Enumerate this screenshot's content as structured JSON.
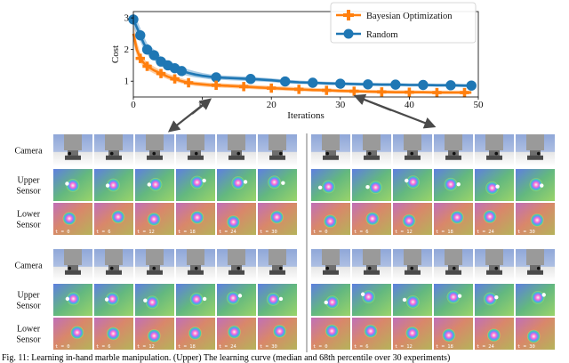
{
  "colors": {
    "bayesian": "#ff7f0e",
    "random": "#1f77b4",
    "bayesian_band": "#ffbf86",
    "random_band": "#8fbbdc"
  },
  "chart_data": {
    "type": "line",
    "xlabel": "Iterations",
    "ylabel": "Cost",
    "xlim": [
      0,
      50
    ],
    "ylim": [
      0.5,
      3.2
    ],
    "xticks": [
      0,
      10,
      20,
      30,
      40,
      50
    ],
    "yticks": [
      1,
      2,
      3
    ],
    "legend_position": "top-right",
    "grid": false,
    "series": [
      {
        "name": "Bayesian Optimization",
        "marker_x": [
          1,
          2,
          4,
          6,
          8,
          12,
          16,
          20,
          24,
          28,
          32,
          36,
          40,
          44,
          48
        ],
        "x": [
          0,
          0.5,
          1,
          1.5,
          2,
          3,
          4,
          5,
          6,
          7,
          8,
          9,
          10,
          11,
          12,
          14,
          16,
          18,
          20,
          22,
          24,
          26,
          28,
          30,
          32,
          34,
          36,
          38,
          40,
          42,
          44,
          46,
          48,
          49
        ],
        "y": [
          2.5,
          2.0,
          1.72,
          1.58,
          1.47,
          1.34,
          1.24,
          1.14,
          1.07,
          1.0,
          0.95,
          0.92,
          0.9,
          0.88,
          0.87,
          0.85,
          0.83,
          0.8,
          0.78,
          0.76,
          0.74,
          0.72,
          0.71,
          0.69,
          0.68,
          0.67,
          0.66,
          0.65,
          0.65,
          0.65,
          0.64,
          0.64,
          0.64,
          0.64
        ],
        "lower": [
          2.2,
          1.8,
          1.58,
          1.46,
          1.36,
          1.24,
          1.15,
          1.06,
          0.99,
          0.93,
          0.88,
          0.85,
          0.83,
          0.81,
          0.8,
          0.78,
          0.76,
          0.74,
          0.72,
          0.7,
          0.69,
          0.67,
          0.66,
          0.64,
          0.63,
          0.62,
          0.61,
          0.6,
          0.6,
          0.6,
          0.59,
          0.59,
          0.59,
          0.59
        ],
        "upper": [
          2.8,
          2.25,
          1.9,
          1.72,
          1.6,
          1.46,
          1.34,
          1.24,
          1.16,
          1.09,
          1.03,
          0.99,
          0.97,
          0.95,
          0.94,
          0.92,
          0.9,
          0.87,
          0.85,
          0.83,
          0.81,
          0.79,
          0.77,
          0.75,
          0.74,
          0.73,
          0.72,
          0.71,
          0.71,
          0.7,
          0.7,
          0.7,
          0.7,
          0.7
        ]
      },
      {
        "name": "Random",
        "marker_x": [
          0,
          1,
          2,
          3,
          4,
          5,
          6,
          7,
          12,
          17,
          22,
          26,
          30,
          34,
          38,
          42,
          46,
          49
        ],
        "x": [
          0,
          0.5,
          1,
          1.5,
          2,
          3,
          4,
          5,
          6,
          7,
          8,
          9,
          10,
          11,
          12,
          14,
          16,
          17,
          20,
          22,
          24,
          26,
          28,
          30,
          32,
          34,
          36,
          38,
          40,
          42,
          44,
          46,
          48,
          49
        ],
        "y": [
          2.95,
          2.7,
          2.45,
          2.2,
          2.0,
          1.82,
          1.62,
          1.5,
          1.41,
          1.32,
          1.26,
          1.21,
          1.17,
          1.14,
          1.12,
          1.1,
          1.08,
          1.07,
          1.03,
          0.99,
          0.96,
          0.95,
          0.93,
          0.92,
          0.91,
          0.9,
          0.89,
          0.89,
          0.88,
          0.88,
          0.87,
          0.87,
          0.86,
          0.86
        ],
        "lower": [
          2.7,
          2.45,
          2.25,
          2.02,
          1.84,
          1.66,
          1.48,
          1.37,
          1.29,
          1.21,
          1.16,
          1.12,
          1.09,
          1.06,
          1.05,
          1.03,
          1.01,
          1.0,
          0.97,
          0.93,
          0.91,
          0.9,
          0.88,
          0.87,
          0.86,
          0.85,
          0.84,
          0.84,
          0.83,
          0.83,
          0.82,
          0.82,
          0.81,
          0.81
        ],
        "upper": [
          3.15,
          2.95,
          2.68,
          2.42,
          2.2,
          2.0,
          1.78,
          1.64,
          1.54,
          1.44,
          1.37,
          1.31,
          1.26,
          1.22,
          1.19,
          1.17,
          1.15,
          1.14,
          1.09,
          1.05,
          1.02,
          1.0,
          0.98,
          0.97,
          0.96,
          0.95,
          0.94,
          0.94,
          0.93,
          0.93,
          0.92,
          0.92,
          0.91,
          0.91
        ]
      }
    ]
  },
  "grid": {
    "row_labels": [
      [
        "Camera"
      ],
      [
        "Upper",
        "Sensor"
      ],
      [
        "Lower",
        "Sensor"
      ]
    ],
    "time_labels": [
      "t = 0",
      "t = 6",
      "t = 12",
      "t = 18",
      "t = 24",
      "t = 30"
    ]
  },
  "caption": "Fig. 11: Learning in-hand marble manipulation. (Upper) The learning curve (median and 68th percentile over 30 experiments)"
}
